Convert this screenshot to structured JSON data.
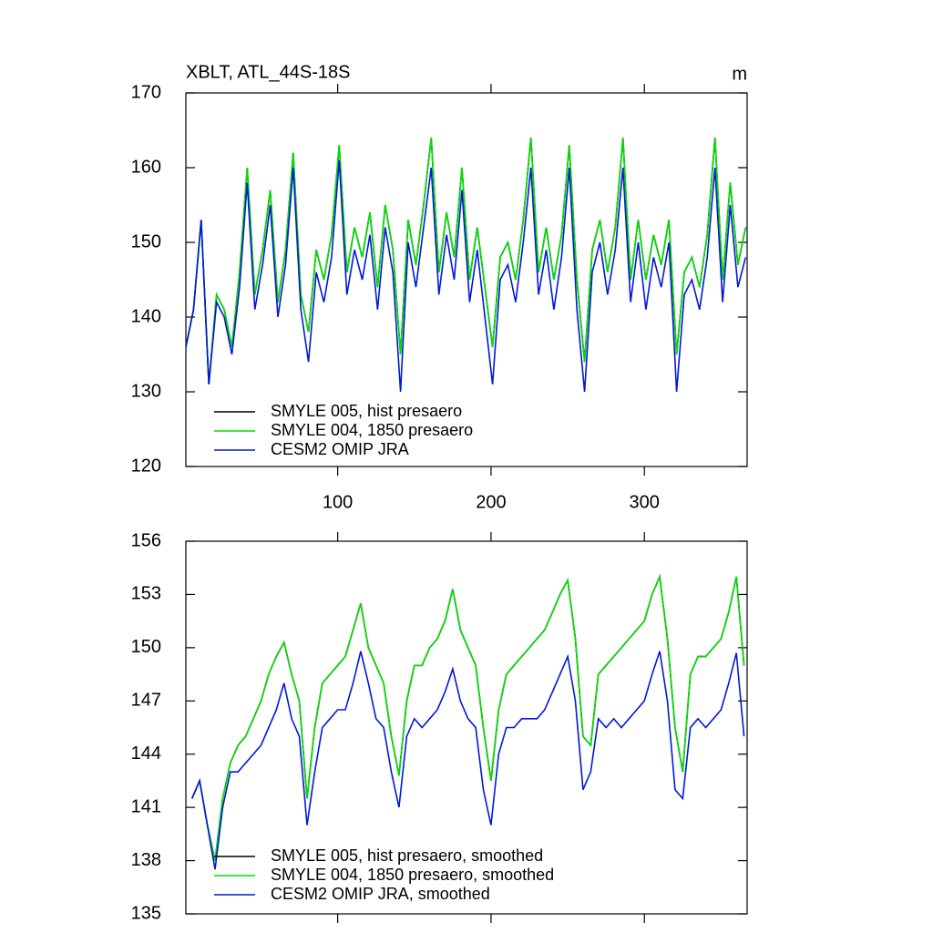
{
  "chart_data": [
    {
      "type": "line",
      "title": "XBLT, ATL_44S-18S",
      "units": "m",
      "legend": "lower left",
      "xlim": [
        1,
        367
      ],
      "ylim": [
        120,
        170
      ],
      "xticks": [
        100,
        200,
        300
      ],
      "yticks": [
        120,
        130,
        140,
        150,
        160,
        170
      ],
      "x": [
        1,
        6,
        11,
        16,
        21,
        26,
        31,
        36,
        41,
        46,
        51,
        56,
        61,
        66,
        71,
        76,
        81,
        86,
        91,
        96,
        101,
        106,
        111,
        116,
        121,
        126,
        131,
        136,
        141,
        146,
        151,
        156,
        161,
        166,
        171,
        176,
        181,
        186,
        191,
        196,
        201,
        206,
        211,
        216,
        221,
        226,
        231,
        236,
        241,
        246,
        251,
        256,
        261,
        266,
        271,
        276,
        281,
        286,
        291,
        296,
        301,
        306,
        311,
        316,
        321,
        326,
        331,
        336,
        341,
        346,
        351,
        356,
        361,
        366
      ],
      "series": [
        {
          "name": "SMYLE 005, hist presaero",
          "color": "#000000",
          "values": [
            136,
            141,
            153,
            131,
            143,
            141,
            136,
            146,
            160,
            143,
            149,
            157,
            142,
            149,
            162,
            143,
            138,
            149,
            145,
            151,
            163,
            146,
            152,
            148,
            154,
            144,
            155,
            149,
            135,
            153,
            147,
            155,
            164,
            146,
            154,
            148,
            160,
            145,
            152,
            144,
            136,
            148,
            150,
            145,
            153,
            164,
            146,
            152,
            145,
            151,
            163,
            145,
            134,
            149,
            153,
            146,
            152,
            164,
            145,
            153,
            145,
            151,
            147,
            153,
            135,
            146,
            148,
            144,
            151,
            164,
            145,
            158,
            147,
            152
          ]
        },
        {
          "name": "SMYLE 004, 1850 presaero",
          "color": "#00e000",
          "values": [
            136,
            141,
            153,
            131,
            143,
            141,
            136,
            146,
            160,
            143,
            149,
            157,
            142,
            149,
            162,
            143,
            138,
            149,
            145,
            151,
            163,
            146,
            152,
            148,
            154,
            144,
            155,
            149,
            135,
            153,
            147,
            155,
            164,
            146,
            154,
            148,
            160,
            145,
            152,
            144,
            136,
            148,
            150,
            145,
            153,
            164,
            146,
            152,
            145,
            151,
            163,
            145,
            134,
            149,
            153,
            146,
            152,
            164,
            145,
            153,
            145,
            151,
            147,
            153,
            135,
            146,
            148,
            144,
            151,
            164,
            145,
            158,
            147,
            152
          ]
        },
        {
          "name": "CESM2 OMIP JRA",
          "color": "#0018d8",
          "values": [
            136,
            141,
            153,
            131,
            142,
            140,
            135,
            144,
            158,
            141,
            147,
            155,
            140,
            147,
            160,
            141,
            134,
            146,
            142,
            148,
            161,
            143,
            149,
            145,
            151,
            141,
            152,
            146,
            130,
            150,
            144,
            152,
            160,
            143,
            151,
            145,
            157,
            142,
            149,
            140,
            131,
            145,
            147,
            142,
            150,
            160,
            143,
            149,
            141,
            148,
            160,
            141,
            130,
            146,
            150,
            143,
            149,
            160,
            142,
            150,
            141,
            148,
            144,
            150,
            130,
            143,
            145,
            141,
            148,
            160,
            142,
            155,
            144,
            148
          ]
        }
      ]
    },
    {
      "type": "line",
      "legend": "lower left",
      "xlim": [
        1,
        367
      ],
      "ylim": [
        135,
        156
      ],
      "xticks": [
        100,
        200,
        300
      ],
      "yticks": [
        135,
        138,
        141,
        144,
        147,
        150,
        153,
        156
      ],
      "x": [
        5,
        10,
        15,
        20,
        25,
        30,
        35,
        40,
        45,
        50,
        55,
        60,
        65,
        70,
        75,
        80,
        85,
        90,
        95,
        100,
        105,
        110,
        115,
        120,
        125,
        130,
        135,
        140,
        145,
        150,
        155,
        160,
        165,
        170,
        175,
        180,
        185,
        190,
        195,
        200,
        205,
        210,
        215,
        220,
        225,
        230,
        235,
        240,
        245,
        250,
        255,
        260,
        265,
        270,
        275,
        280,
        285,
        290,
        295,
        300,
        305,
        310,
        315,
        320,
        325,
        330,
        335,
        340,
        345,
        350,
        355,
        360,
        365
      ],
      "series": [
        {
          "name": "SMYLE 005, hist presaero, smoothed",
          "color": "#000000",
          "values": [
            141.5,
            142.5,
            140,
            138,
            141.5,
            143.5,
            144.5,
            145,
            146,
            147,
            148.5,
            149.5,
            150.3,
            148.5,
            147,
            141.5,
            145.5,
            148,
            148.5,
            149,
            149.5,
            151,
            152.5,
            150,
            149,
            148,
            145,
            142.8,
            147,
            149,
            149,
            150,
            150.5,
            151.5,
            153.3,
            151,
            150,
            149,
            145.5,
            142.5,
            146.5,
            148.5,
            149,
            149.5,
            150,
            150.5,
            151,
            152,
            153,
            153.8,
            150.5,
            145,
            144.5,
            148.5,
            149,
            149.5,
            150,
            150.5,
            151,
            151.5,
            153,
            154,
            150.5,
            145.5,
            143,
            148.5,
            149.5,
            149.5,
            150,
            150.5,
            152,
            154,
            149
          ]
        },
        {
          "name": "SMYLE 004, 1850 presaero, smoothed",
          "color": "#00e000",
          "values": [
            141.5,
            142.5,
            140,
            138,
            141.5,
            143.5,
            144.5,
            145,
            146,
            147,
            148.5,
            149.5,
            150.3,
            148.5,
            147,
            141.5,
            145.5,
            148,
            148.5,
            149,
            149.5,
            151,
            152.5,
            150,
            149,
            148,
            145,
            142.8,
            147,
            149,
            149,
            150,
            150.5,
            151.5,
            153.3,
            151,
            150,
            149,
            145.5,
            142.5,
            146.5,
            148.5,
            149,
            149.5,
            150,
            150.5,
            151,
            152,
            153,
            153.8,
            150.5,
            145,
            144.5,
            148.5,
            149,
            149.5,
            150,
            150.5,
            151,
            151.5,
            153,
            154,
            150.5,
            145.5,
            143,
            148.5,
            149.5,
            149.5,
            150,
            150.5,
            152,
            154,
            149
          ]
        },
        {
          "name": "CESM2 OMIP JRA, smoothed",
          "color": "#0018d8",
          "values": [
            141.5,
            142.5,
            140,
            137.5,
            141,
            143,
            143,
            143.5,
            144,
            144.5,
            145.5,
            146.5,
            148,
            146,
            145,
            140,
            143,
            145.5,
            146,
            146.5,
            146.5,
            148,
            149.8,
            148,
            146,
            145.5,
            143,
            141,
            145,
            146,
            145.5,
            146,
            146.5,
            147.5,
            148.8,
            147,
            146,
            145.5,
            142,
            140,
            144,
            145.5,
            145.5,
            146,
            146,
            146,
            146.5,
            147.5,
            148.5,
            149.5,
            147,
            142,
            143,
            146,
            145.5,
            146,
            145.5,
            146,
            146.5,
            147,
            148.5,
            149.8,
            147,
            142,
            141.5,
            145.5,
            146,
            145.5,
            146,
            146.5,
            148,
            149.7,
            145
          ]
        }
      ]
    }
  ]
}
